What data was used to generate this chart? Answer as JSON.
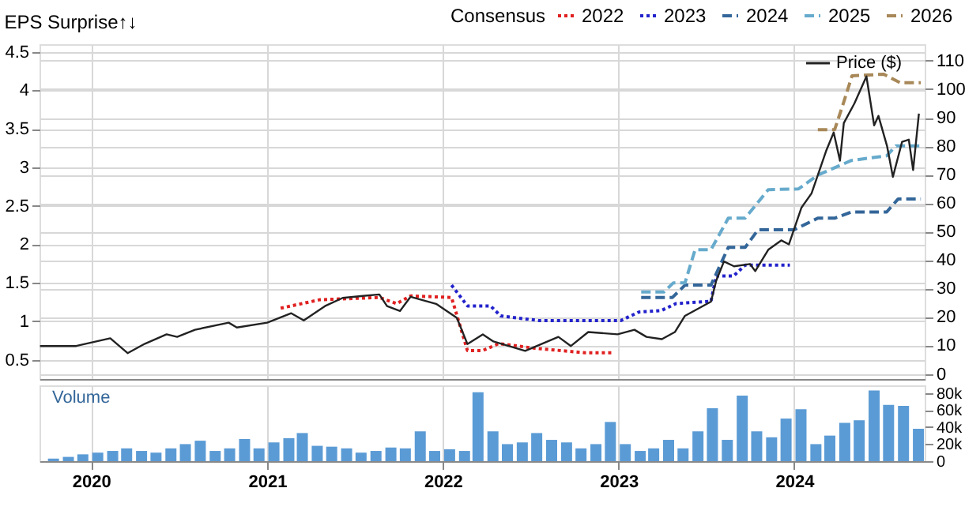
{
  "chart_data": [
    {
      "type": "line",
      "title": "EPS Surprise↑↓",
      "legend_title": "Consensus",
      "legend": "top right",
      "grid": true,
      "tick_labels": "y",
      "xlim": [
        "2019-09-16",
        "2024-09-28"
      ],
      "xticks": [
        "2020",
        "2021",
        "2022",
        "2023",
        "2024"
      ],
      "ylim": [
        0.25,
        4.6
      ],
      "yticks": [
        0.5,
        1,
        1.5,
        2,
        2.5,
        3,
        3.5,
        4,
        4.5
      ],
      "y2lim": [
        -1.8,
        115.8
      ],
      "y2ticks": [
        0,
        10,
        20,
        30,
        40,
        50,
        60,
        70,
        80,
        90,
        100,
        110
      ],
      "series": [
        {
          "name": "2022",
          "color": "#e02020",
          "line_style": "dotted",
          "x": [
            "2021-01-29",
            "2021-04-20",
            "2021-08-22",
            "2021-09-27",
            "2021-10-26",
            "2022-01-19",
            "2022-02-11",
            "2022-02-21",
            "2022-03-25",
            "2022-04-27",
            "2022-07-11",
            "2022-10-25",
            "2022-12-23"
          ],
          "values": [
            1.17,
            1.28,
            1.31,
            1.23,
            1.33,
            1.31,
            0.83,
            0.62,
            0.62,
            0.71,
            0.65,
            0.59,
            0.59
          ]
        },
        {
          "name": "2023",
          "color": "#2222cc",
          "line_style": "dotted",
          "x": [
            "2022-01-19",
            "2022-02-21",
            "2022-04-10",
            "2022-05-01",
            "2022-07-19",
            "2023-01-06",
            "2023-02-12",
            "2023-03-31",
            "2023-04-30",
            "2023-07-12",
            "2023-07-23",
            "2023-08-28",
            "2023-09-21",
            "2023-12-23"
          ],
          "values": [
            1.47,
            1.2,
            1.2,
            1.07,
            1.01,
            1.01,
            1.12,
            1.14,
            1.23,
            1.26,
            1.59,
            1.59,
            1.73,
            1.73
          ]
        },
        {
          "name": "2024",
          "color": "#336699",
          "line_style": "dashed",
          "x": [
            "2023-02-17",
            "2023-04-23",
            "2023-05-19",
            "2023-07-12",
            "2023-08-17",
            "2023-09-21",
            "2023-10-18",
            "2024-01-01",
            "2024-02-19",
            "2024-03-25",
            "2024-04-29",
            "2024-07-11",
            "2024-08-04",
            "2024-09-20"
          ],
          "values": [
            1.31,
            1.31,
            1.47,
            1.47,
            1.96,
            1.96,
            2.19,
            2.19,
            2.34,
            2.34,
            2.42,
            2.42,
            2.59,
            2.59
          ]
        },
        {
          "name": "2025",
          "color": "#66aacc",
          "line_style": "dashed",
          "x": [
            "2023-02-17",
            "2023-04-05",
            "2023-04-25",
            "2023-05-19",
            "2023-06-09",
            "2023-07-12",
            "2023-08-17",
            "2023-09-21",
            "2023-11-08",
            "2024-01-10",
            "2024-02-19",
            "2024-04-29",
            "2024-07-11",
            "2024-07-30",
            "2024-09-20"
          ],
          "values": [
            1.38,
            1.38,
            1.5,
            1.5,
            1.93,
            1.93,
            2.34,
            2.34,
            2.71,
            2.72,
            2.9,
            3.09,
            3.15,
            3.28,
            3.28
          ]
        },
        {
          "name": "2026",
          "color": "#a88858",
          "line_style": "dashed",
          "x": [
            "2024-02-19",
            "2024-03-25",
            "2024-04-13",
            "2024-04-30",
            "2024-07-05",
            "2024-08-08",
            "2024-09-20"
          ],
          "values": [
            3.49,
            3.49,
            3.85,
            4.19,
            4.21,
            4.1,
            4.1
          ]
        },
        {
          "name": "Price ($)",
          "color": "#222222",
          "line_style": "solid",
          "axis": "y2",
          "x": [
            "2019-09-17",
            "2019-12-01",
            "2020-02-10",
            "2020-03-17",
            "2020-04-22",
            "2020-06-06",
            "2020-06-28",
            "2020-08-04",
            "2020-10-13",
            "2020-10-30",
            "2021-01-01",
            "2021-02-20",
            "2021-03-18",
            "2021-05-01",
            "2021-06-07",
            "2021-07-19",
            "2021-08-22",
            "2021-09-07",
            "2021-10-04",
            "2021-10-26",
            "2021-12-18",
            "2022-01-30",
            "2022-02-21",
            "2022-03-25",
            "2022-04-16",
            "2022-06-21",
            "2022-08-29",
            "2022-09-24",
            "2022-10-30",
            "2022-12-30",
            "2023-02-03",
            "2023-02-28",
            "2023-04-01",
            "2023-04-28",
            "2023-05-19",
            "2023-07-12",
            "2023-07-23",
            "2023-08-08",
            "2023-08-29",
            "2023-10-01",
            "2023-10-12",
            "2023-11-08",
            "2023-12-05",
            "2023-12-21",
            "2024-01-16",
            "2024-02-06",
            "2024-03-07",
            "2024-03-23",
            "2024-04-05",
            "2024-04-13",
            "2024-05-05",
            "2024-05-30",
            "2024-06-15",
            "2024-06-24",
            "2024-07-12",
            "2024-07-24",
            "2024-08-12",
            "2024-08-26",
            "2024-09-04",
            "2024-09-16"
          ],
          "values": [
            9.8,
            9.8,
            12.5,
            7.3,
            10.6,
            13.9,
            13.0,
            15.5,
            18.0,
            16.3,
            18.0,
            21.3,
            18.8,
            23.8,
            26.7,
            27.4,
            27.9,
            23.8,
            22.1,
            27.1,
            24.6,
            19.7,
            10.5,
            13.9,
            11.4,
            8.1,
            13.0,
            9.8,
            14.7,
            13.9,
            15.5,
            13.0,
            12.2,
            14.7,
            20.4,
            25.4,
            32.8,
            39.5,
            37.8,
            38.6,
            36.1,
            43.6,
            46.9,
            45.5,
            58.4,
            63.4,
            78.2,
            84.8,
            74.9,
            88.1,
            95.0,
            104.5,
            87.3,
            90.6,
            79.9,
            69.2,
            81.5,
            82.3,
            71.6,
            91.4
          ]
        }
      ]
    },
    {
      "type": "bar",
      "ylabel": "Volume",
      "grid": "x",
      "xlim": [
        "2019-09-16",
        "2024-09-28"
      ],
      "xticks": [
        "2020",
        "2021",
        "2022",
        "2023",
        "2024"
      ],
      "ylim": [
        0,
        89000
      ],
      "yticks": [
        0,
        {
          "value": 20000,
          "label": "20k"
        },
        {
          "value": 40000,
          "label": "40k"
        },
        {
          "value": 60000,
          "label": "60k"
        },
        {
          "value": 80000,
          "label": "80k"
        }
      ],
      "x": [
        "2019-10-15",
        "2019-11-15",
        "2019-12-15",
        "2020-01-15",
        "2020-02-15",
        "2020-03-15",
        "2020-04-15",
        "2020-05-15",
        "2020-06-15",
        "2020-07-15",
        "2020-08-15",
        "2020-09-15",
        "2020-10-15",
        "2020-11-15",
        "2020-12-15",
        "2021-01-15",
        "2021-02-15",
        "2021-03-15",
        "2021-04-15",
        "2021-05-15",
        "2021-06-15",
        "2021-07-15",
        "2021-08-15",
        "2021-09-15",
        "2021-10-15",
        "2021-11-15",
        "2021-12-15",
        "2022-01-15",
        "2022-02-15",
        "2022-03-15",
        "2022-04-15",
        "2022-05-15",
        "2022-06-15",
        "2022-07-15",
        "2022-08-15",
        "2022-09-15",
        "2022-10-15",
        "2022-11-15",
        "2022-12-15",
        "2023-01-15",
        "2023-02-15",
        "2023-03-15",
        "2023-04-15",
        "2023-05-15",
        "2023-06-15",
        "2023-07-15",
        "2023-08-15",
        "2023-09-15",
        "2023-10-15",
        "2023-11-15",
        "2023-12-15",
        "2024-01-15",
        "2024-02-15",
        "2024-03-15",
        "2024-04-15",
        "2024-05-15",
        "2024-06-15",
        "2024-07-15",
        "2024-08-15",
        "2024-09-15"
      ],
      "color": "#5b9bd5",
      "values": [
        3000,
        5000,
        8000,
        10000,
        12000,
        15000,
        12000,
        10000,
        15000,
        20000,
        24000,
        12000,
        15000,
        26000,
        15000,
        22000,
        27000,
        33000,
        18000,
        17000,
        15000,
        10000,
        12000,
        16000,
        15000,
        35000,
        12000,
        14000,
        12000,
        81000,
        35000,
        20000,
        22000,
        33000,
        25000,
        22000,
        15000,
        20000,
        46000,
        20000,
        12000,
        15000,
        25000,
        15000,
        35000,
        62000,
        25000,
        77000,
        35000,
        28000,
        50000,
        61000,
        20000,
        30000,
        45000,
        48000,
        83000,
        66000,
        65000,
        38000
      ]
    }
  ]
}
